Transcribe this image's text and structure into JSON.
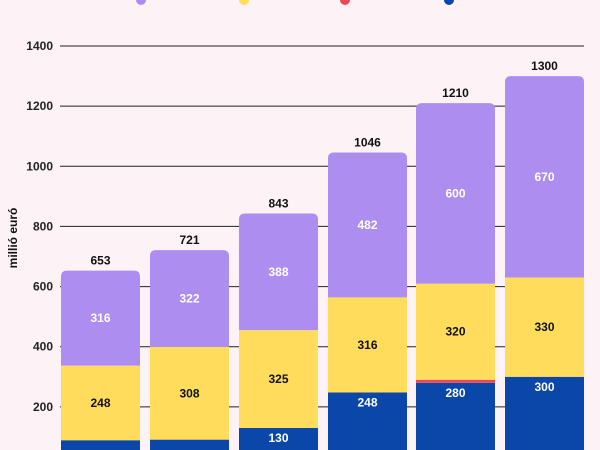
{
  "chart_data": {
    "type": "bar",
    "stacked": true,
    "ylabel": "millió euró",
    "ylim": [
      0,
      1400
    ],
    "yticks": [
      200,
      400,
      600,
      800,
      1000,
      1200,
      1400
    ],
    "grid": true,
    "categories": [
      "",
      "",
      "",
      "",
      "",
      ""
    ],
    "series": [
      {
        "color": "#0a47a9",
        "label_color": "#ffffff",
        "values": [
          89,
          91,
          130,
          248,
          280,
          300
        ]
      },
      {
        "color": "#e94a5a",
        "label_color": "#ffffff",
        "values": [
          0,
          0,
          0,
          0,
          10,
          0
        ]
      },
      {
        "color": "#ffdc5c",
        "label_color": "#111111",
        "values": [
          248,
          308,
          325,
          316,
          320,
          330
        ]
      },
      {
        "color": "#ae8df0",
        "label_color": "#ffffff",
        "values": [
          316,
          322,
          388,
          482,
          600,
          670
        ]
      }
    ],
    "segment_labels": [
      [
        "",
        "",
        "",
        "",
        "",
        ""
      ],
      [
        "",
        "",
        "",
        "",
        "",
        ""
      ],
      [
        "248",
        "308",
        "325",
        "316",
        "320",
        "330"
      ],
      [
        "316",
        "322",
        "388",
        "482",
        "600",
        "670"
      ]
    ],
    "bottom_labels": [
      "",
      "",
      "130",
      "248",
      "280",
      "300"
    ],
    "totals": [
      653,
      721,
      843,
      1046,
      1210,
      1300
    ],
    "legend_colors": [
      "#ae8df0",
      "#ffdc5c",
      "#e94a5a",
      "#0a47a9"
    ]
  }
}
